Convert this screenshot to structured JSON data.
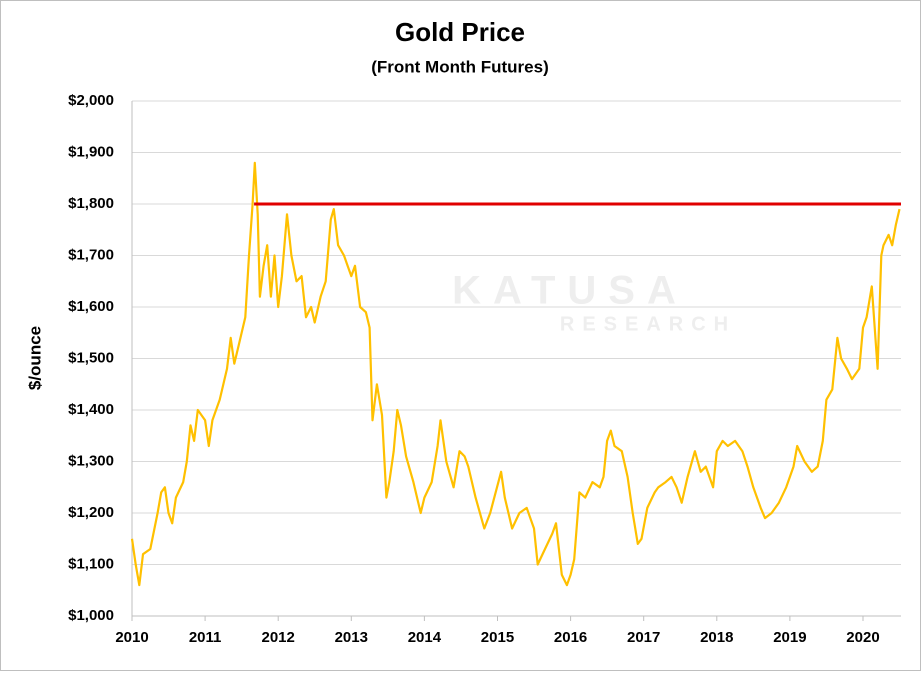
{
  "chart_data": {
    "type": "line",
    "title": "Gold Price",
    "subtitle": "(Front Month Futures)",
    "y_label": "$/ounce",
    "watermark": [
      "KATUSA",
      "RESEARCH"
    ],
    "xlim": [
      2010,
      2020.52
    ],
    "xticks": [
      2010,
      2011,
      2012,
      2013,
      2014,
      2015,
      2016,
      2017,
      2018,
      2019,
      2020
    ],
    "ylim": [
      1000,
      2000
    ],
    "yticks": [
      {
        "value": 1000,
        "label": "$1,000"
      },
      {
        "value": 1100,
        "label": "$1,100"
      },
      {
        "value": 1200,
        "label": "$1,200"
      },
      {
        "value": 1300,
        "label": "$1,300"
      },
      {
        "value": 1400,
        "label": "$1,400"
      },
      {
        "value": 1500,
        "label": "$1,500"
      },
      {
        "value": 1600,
        "label": "$1,600"
      },
      {
        "value": 1700,
        "label": "$1,700"
      },
      {
        "value": 1800,
        "label": "$1,800"
      },
      {
        "value": 1900,
        "label": "$1,900"
      },
      {
        "value": 2000,
        "label": "$2,000"
      }
    ],
    "grid": true,
    "series": [
      {
        "color": "#ffc000",
        "x": [
          2010.0,
          2010.05,
          2010.1,
          2010.15,
          2010.25,
          2010.35,
          2010.4,
          2010.45,
          2010.5,
          2010.55,
          2010.6,
          2010.7,
          2010.75,
          2010.8,
          2010.85,
          2010.9,
          2011.0,
          2011.05,
          2011.1,
          2011.2,
          2011.3,
          2011.35,
          2011.4,
          2011.45,
          2011.55,
          2011.6,
          2011.65,
          2011.68,
          2011.72,
          2011.75,
          2011.8,
          2011.85,
          2011.9,
          2011.95,
          2012.0,
          2012.05,
          2012.12,
          2012.18,
          2012.25,
          2012.32,
          2012.38,
          2012.45,
          2012.5,
          2012.58,
          2012.65,
          2012.72,
          2012.76,
          2012.82,
          2012.9,
          2012.95,
          2013.0,
          2013.05,
          2013.12,
          2013.2,
          2013.25,
          2013.29,
          2013.35,
          2013.42,
          2013.48,
          2013.52,
          2013.58,
          2013.63,
          2013.68,
          2013.75,
          2013.85,
          2013.95,
          2014.0,
          2014.1,
          2014.18,
          2014.22,
          2014.3,
          2014.4,
          2014.48,
          2014.55,
          2014.6,
          2014.7,
          2014.82,
          2014.9,
          2015.05,
          2015.1,
          2015.2,
          2015.3,
          2015.4,
          2015.5,
          2015.55,
          2015.65,
          2015.75,
          2015.8,
          2015.88,
          2015.95,
          2016.0,
          2016.05,
          2016.12,
          2016.2,
          2016.3,
          2016.4,
          2016.45,
          2016.5,
          2016.55,
          2016.6,
          2016.7,
          2016.78,
          2016.85,
          2016.92,
          2016.97,
          2017.05,
          2017.15,
          2017.2,
          2017.3,
          2017.38,
          2017.45,
          2017.52,
          2017.6,
          2017.7,
          2017.78,
          2017.85,
          2017.95,
          2018.0,
          2018.08,
          2018.15,
          2018.25,
          2018.35,
          2018.42,
          2018.5,
          2018.6,
          2018.66,
          2018.75,
          2018.85,
          2018.95,
          2019.05,
          2019.1,
          2019.2,
          2019.3,
          2019.38,
          2019.45,
          2019.5,
          2019.58,
          2019.65,
          2019.7,
          2019.78,
          2019.85,
          2019.95,
          2020.0,
          2020.05,
          2020.12,
          2020.16,
          2020.2,
          2020.25,
          2020.28,
          2020.35,
          2020.4,
          2020.45,
          2020.5
        ],
        "values": [
          1150,
          1100,
          1060,
          1120,
          1130,
          1200,
          1240,
          1250,
          1200,
          1180,
          1230,
          1260,
          1300,
          1370,
          1340,
          1400,
          1380,
          1330,
          1380,
          1420,
          1480,
          1540,
          1490,
          1520,
          1580,
          1700,
          1800,
          1880,
          1780,
          1620,
          1680,
          1720,
          1620,
          1700,
          1600,
          1660,
          1780,
          1700,
          1650,
          1660,
          1580,
          1600,
          1570,
          1620,
          1650,
          1770,
          1790,
          1720,
          1700,
          1680,
          1660,
          1680,
          1600,
          1590,
          1560,
          1380,
          1450,
          1390,
          1230,
          1260,
          1320,
          1400,
          1370,
          1310,
          1260,
          1200,
          1230,
          1260,
          1330,
          1380,
          1300,
          1250,
          1320,
          1310,
          1290,
          1230,
          1170,
          1200,
          1280,
          1230,
          1170,
          1200,
          1210,
          1170,
          1100,
          1130,
          1160,
          1180,
          1080,
          1060,
          1080,
          1110,
          1240,
          1230,
          1260,
          1250,
          1270,
          1340,
          1360,
          1330,
          1320,
          1270,
          1200,
          1140,
          1150,
          1210,
          1240,
          1250,
          1260,
          1270,
          1250,
          1220,
          1270,
          1320,
          1280,
          1290,
          1250,
          1320,
          1340,
          1330,
          1340,
          1320,
          1290,
          1250,
          1210,
          1190,
          1200,
          1220,
          1250,
          1290,
          1330,
          1300,
          1280,
          1290,
          1340,
          1420,
          1440,
          1540,
          1500,
          1480,
          1460,
          1480,
          1560,
          1580,
          1640,
          1560,
          1480,
          1700,
          1720,
          1740,
          1720,
          1760,
          1790
        ]
      }
    ],
    "reference_line": {
      "value": 1800,
      "x": [
        2011.67,
        2020.52
      ],
      "color": "#e00000"
    }
  }
}
